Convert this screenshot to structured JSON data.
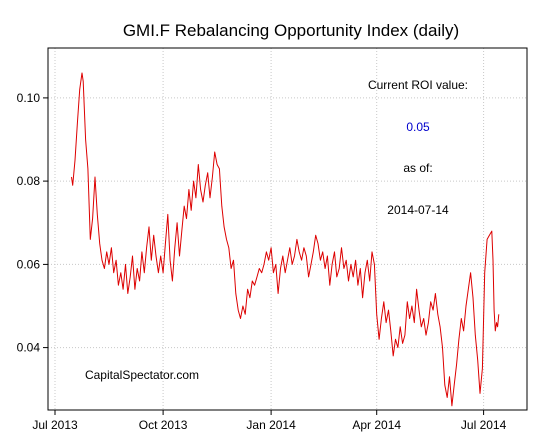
{
  "chart_data": {
    "type": "line",
    "title": "GMI.F Rebalancing Opportunity Index (daily)",
    "xlabel": "",
    "ylabel": "",
    "x_range": [
      "2013-06-25",
      "2014-08-07"
    ],
    "ylim": [
      0.025,
      0.112
    ],
    "grid": true,
    "grid_style": "dotted",
    "x_ticks": [
      {
        "date": "2013-07-01",
        "label": "Jul 2013"
      },
      {
        "date": "2013-10-01",
        "label": "Oct 2013"
      },
      {
        "date": "2014-01-01",
        "label": "Jan 2014"
      },
      {
        "date": "2014-04-01",
        "label": "Apr 2014"
      },
      {
        "date": "2014-07-01",
        "label": "Jul 2014"
      }
    ],
    "y_ticks": [
      {
        "value": 0.04,
        "label": "0.04"
      },
      {
        "value": 0.06,
        "label": "0.06"
      },
      {
        "value": 0.08,
        "label": "0.08"
      },
      {
        "value": 0.1,
        "label": "0.10"
      }
    ],
    "series": [
      {
        "color": "#dd0000",
        "points": [
          [
            "2013-07-15",
            0.081
          ],
          [
            "2013-07-16",
            0.079
          ],
          [
            "2013-07-18",
            0.085
          ],
          [
            "2013-07-20",
            0.094
          ],
          [
            "2013-07-22",
            0.102
          ],
          [
            "2013-07-24",
            0.106
          ],
          [
            "2013-07-25",
            0.104
          ],
          [
            "2013-07-27",
            0.09
          ],
          [
            "2013-07-29",
            0.083
          ],
          [
            "2013-07-31",
            0.066
          ],
          [
            "2013-08-02",
            0.071
          ],
          [
            "2013-08-04",
            0.081
          ],
          [
            "2013-08-06",
            0.072
          ],
          [
            "2013-08-08",
            0.065
          ],
          [
            "2013-08-10",
            0.061
          ],
          [
            "2013-08-12",
            0.059
          ],
          [
            "2013-08-14",
            0.063
          ],
          [
            "2013-08-16",
            0.06
          ],
          [
            "2013-08-18",
            0.064
          ],
          [
            "2013-08-20",
            0.058
          ],
          [
            "2013-08-22",
            0.061
          ],
          [
            "2013-08-24",
            0.055
          ],
          [
            "2013-08-26",
            0.058
          ],
          [
            "2013-08-28",
            0.054
          ],
          [
            "2013-08-30",
            0.06
          ],
          [
            "2013-09-01",
            0.053
          ],
          [
            "2013-09-03",
            0.057
          ],
          [
            "2013-09-05",
            0.062
          ],
          [
            "2013-09-07",
            0.054
          ],
          [
            "2013-09-09",
            0.059
          ],
          [
            "2013-09-11",
            0.056
          ],
          [
            "2013-09-13",
            0.063
          ],
          [
            "2013-09-15",
            0.058
          ],
          [
            "2013-09-17",
            0.064
          ],
          [
            "2013-09-19",
            0.069
          ],
          [
            "2013-09-21",
            0.061
          ],
          [
            "2013-09-23",
            0.067
          ],
          [
            "2013-09-25",
            0.062
          ],
          [
            "2013-09-27",
            0.058
          ],
          [
            "2013-09-29",
            0.062
          ],
          [
            "2013-10-01",
            0.058
          ],
          [
            "2013-10-03",
            0.065
          ],
          [
            "2013-10-05",
            0.072
          ],
          [
            "2013-10-07",
            0.061
          ],
          [
            "2013-10-09",
            0.056
          ],
          [
            "2013-10-11",
            0.064
          ],
          [
            "2013-10-13",
            0.07
          ],
          [
            "2013-10-15",
            0.062
          ],
          [
            "2013-10-17",
            0.068
          ],
          [
            "2013-10-19",
            0.074
          ],
          [
            "2013-10-21",
            0.071
          ],
          [
            "2013-10-23",
            0.078
          ],
          [
            "2013-10-25",
            0.073
          ],
          [
            "2013-10-27",
            0.08
          ],
          [
            "2013-10-29",
            0.076
          ],
          [
            "2013-10-31",
            0.084
          ],
          [
            "2013-11-02",
            0.078
          ],
          [
            "2013-11-04",
            0.075
          ],
          [
            "2013-11-06",
            0.079
          ],
          [
            "2013-11-08",
            0.082
          ],
          [
            "2013-11-10",
            0.076
          ],
          [
            "2013-11-12",
            0.081
          ],
          [
            "2013-11-14",
            0.087
          ],
          [
            "2013-11-16",
            0.084
          ],
          [
            "2013-11-18",
            0.083
          ],
          [
            "2013-11-20",
            0.074
          ],
          [
            "2013-11-22",
            0.069
          ],
          [
            "2013-11-24",
            0.066
          ],
          [
            "2013-11-26",
            0.064
          ],
          [
            "2013-11-28",
            0.059
          ],
          [
            "2013-11-30",
            0.061
          ],
          [
            "2013-12-02",
            0.053
          ],
          [
            "2013-12-04",
            0.049
          ],
          [
            "2013-12-06",
            0.047
          ],
          [
            "2013-12-08",
            0.05
          ],
          [
            "2013-12-10",
            0.048
          ],
          [
            "2013-12-12",
            0.054
          ],
          [
            "2013-12-14",
            0.052
          ],
          [
            "2013-12-16",
            0.056
          ],
          [
            "2013-12-18",
            0.055
          ],
          [
            "2013-12-20",
            0.057
          ],
          [
            "2013-12-22",
            0.059
          ],
          [
            "2013-12-24",
            0.058
          ],
          [
            "2013-12-26",
            0.06
          ],
          [
            "2013-12-28",
            0.063
          ],
          [
            "2013-12-30",
            0.061
          ],
          [
            "2014-01-01",
            0.064
          ],
          [
            "2014-01-03",
            0.058
          ],
          [
            "2014-01-05",
            0.06
          ],
          [
            "2014-01-07",
            0.053
          ],
          [
            "2014-01-09",
            0.059
          ],
          [
            "2014-01-11",
            0.062
          ],
          [
            "2014-01-13",
            0.058
          ],
          [
            "2014-01-15",
            0.061
          ],
          [
            "2014-01-17",
            0.064
          ],
          [
            "2014-01-19",
            0.06
          ],
          [
            "2014-01-21",
            0.062
          ],
          [
            "2014-01-23",
            0.066
          ],
          [
            "2014-01-25",
            0.063
          ],
          [
            "2014-01-27",
            0.061
          ],
          [
            "2014-01-29",
            0.064
          ],
          [
            "2014-01-31",
            0.062
          ],
          [
            "2014-02-02",
            0.057
          ],
          [
            "2014-02-04",
            0.06
          ],
          [
            "2014-02-06",
            0.063
          ],
          [
            "2014-02-08",
            0.067
          ],
          [
            "2014-02-10",
            0.065
          ],
          [
            "2014-02-12",
            0.061
          ],
          [
            "2014-02-14",
            0.063
          ],
          [
            "2014-02-16",
            0.059
          ],
          [
            "2014-02-18",
            0.062
          ],
          [
            "2014-02-20",
            0.055
          ],
          [
            "2014-02-22",
            0.06
          ],
          [
            "2014-02-24",
            0.063
          ],
          [
            "2014-02-26",
            0.057
          ],
          [
            "2014-02-28",
            0.059
          ],
          [
            "2014-03-02",
            0.064
          ],
          [
            "2014-03-04",
            0.059
          ],
          [
            "2014-03-06",
            0.061
          ],
          [
            "2014-03-08",
            0.056
          ],
          [
            "2014-03-10",
            0.06
          ],
          [
            "2014-03-12",
            0.057
          ],
          [
            "2014-03-14",
            0.061
          ],
          [
            "2014-03-16",
            0.055
          ],
          [
            "2014-03-18",
            0.059
          ],
          [
            "2014-03-20",
            0.052
          ],
          [
            "2014-03-22",
            0.058
          ],
          [
            "2014-03-24",
            0.061
          ],
          [
            "2014-03-26",
            0.056
          ],
          [
            "2014-03-28",
            0.063
          ],
          [
            "2014-03-30",
            0.06
          ],
          [
            "2014-04-01",
            0.048
          ],
          [
            "2014-04-03",
            0.042
          ],
          [
            "2014-04-05",
            0.047
          ],
          [
            "2014-04-07",
            0.051
          ],
          [
            "2014-04-09",
            0.046
          ],
          [
            "2014-04-11",
            0.049
          ],
          [
            "2014-04-13",
            0.044
          ],
          [
            "2014-04-15",
            0.038
          ],
          [
            "2014-04-17",
            0.042
          ],
          [
            "2014-04-19",
            0.04
          ],
          [
            "2014-04-21",
            0.045
          ],
          [
            "2014-04-23",
            0.041
          ],
          [
            "2014-04-25",
            0.043
          ],
          [
            "2014-04-27",
            0.051
          ],
          [
            "2014-04-29",
            0.047
          ],
          [
            "2014-05-01",
            0.05
          ],
          [
            "2014-05-03",
            0.046
          ],
          [
            "2014-05-05",
            0.054
          ],
          [
            "2014-05-07",
            0.049
          ],
          [
            "2014-05-09",
            0.045
          ],
          [
            "2014-05-11",
            0.047
          ],
          [
            "2014-05-13",
            0.043
          ],
          [
            "2014-05-15",
            0.046
          ],
          [
            "2014-05-17",
            0.051
          ],
          [
            "2014-05-19",
            0.049
          ],
          [
            "2014-05-21",
            0.053
          ],
          [
            "2014-05-23",
            0.048
          ],
          [
            "2014-05-25",
            0.045
          ],
          [
            "2014-05-27",
            0.04
          ],
          [
            "2014-05-29",
            0.031
          ],
          [
            "2014-05-31",
            0.028
          ],
          [
            "2014-06-02",
            0.033
          ],
          [
            "2014-06-04",
            0.026
          ],
          [
            "2014-06-06",
            0.031
          ],
          [
            "2014-06-08",
            0.036
          ],
          [
            "2014-06-10",
            0.042
          ],
          [
            "2014-06-12",
            0.047
          ],
          [
            "2014-06-14",
            0.044
          ],
          [
            "2014-06-16",
            0.05
          ],
          [
            "2014-06-18",
            0.054
          ],
          [
            "2014-06-20",
            0.058
          ],
          [
            "2014-06-22",
            0.052
          ],
          [
            "2014-06-24",
            0.043
          ],
          [
            "2014-06-26",
            0.037
          ],
          [
            "2014-06-28",
            0.029
          ],
          [
            "2014-06-30",
            0.035
          ],
          [
            "2014-07-02",
            0.058
          ],
          [
            "2014-07-04",
            0.066
          ],
          [
            "2014-07-06",
            0.067
          ],
          [
            "2014-07-08",
            0.068
          ],
          [
            "2014-07-09",
            0.061
          ],
          [
            "2014-07-10",
            0.049
          ],
          [
            "2014-07-11",
            0.044
          ],
          [
            "2014-07-12",
            0.046
          ],
          [
            "2014-07-13",
            0.045
          ],
          [
            "2014-07-14",
            0.048
          ]
        ]
      }
    ],
    "annotations": {
      "roi_label": "Current ROI value:",
      "roi_value": "0.05",
      "as_of_label": "as of:",
      "as_of_date": "2014-07-14",
      "source": "CapitalSpectator.com"
    },
    "colors": {
      "line": "#dd0000",
      "roi_value": "#0000cc",
      "grid": "#c8c8c8",
      "axis": "#000000"
    }
  }
}
